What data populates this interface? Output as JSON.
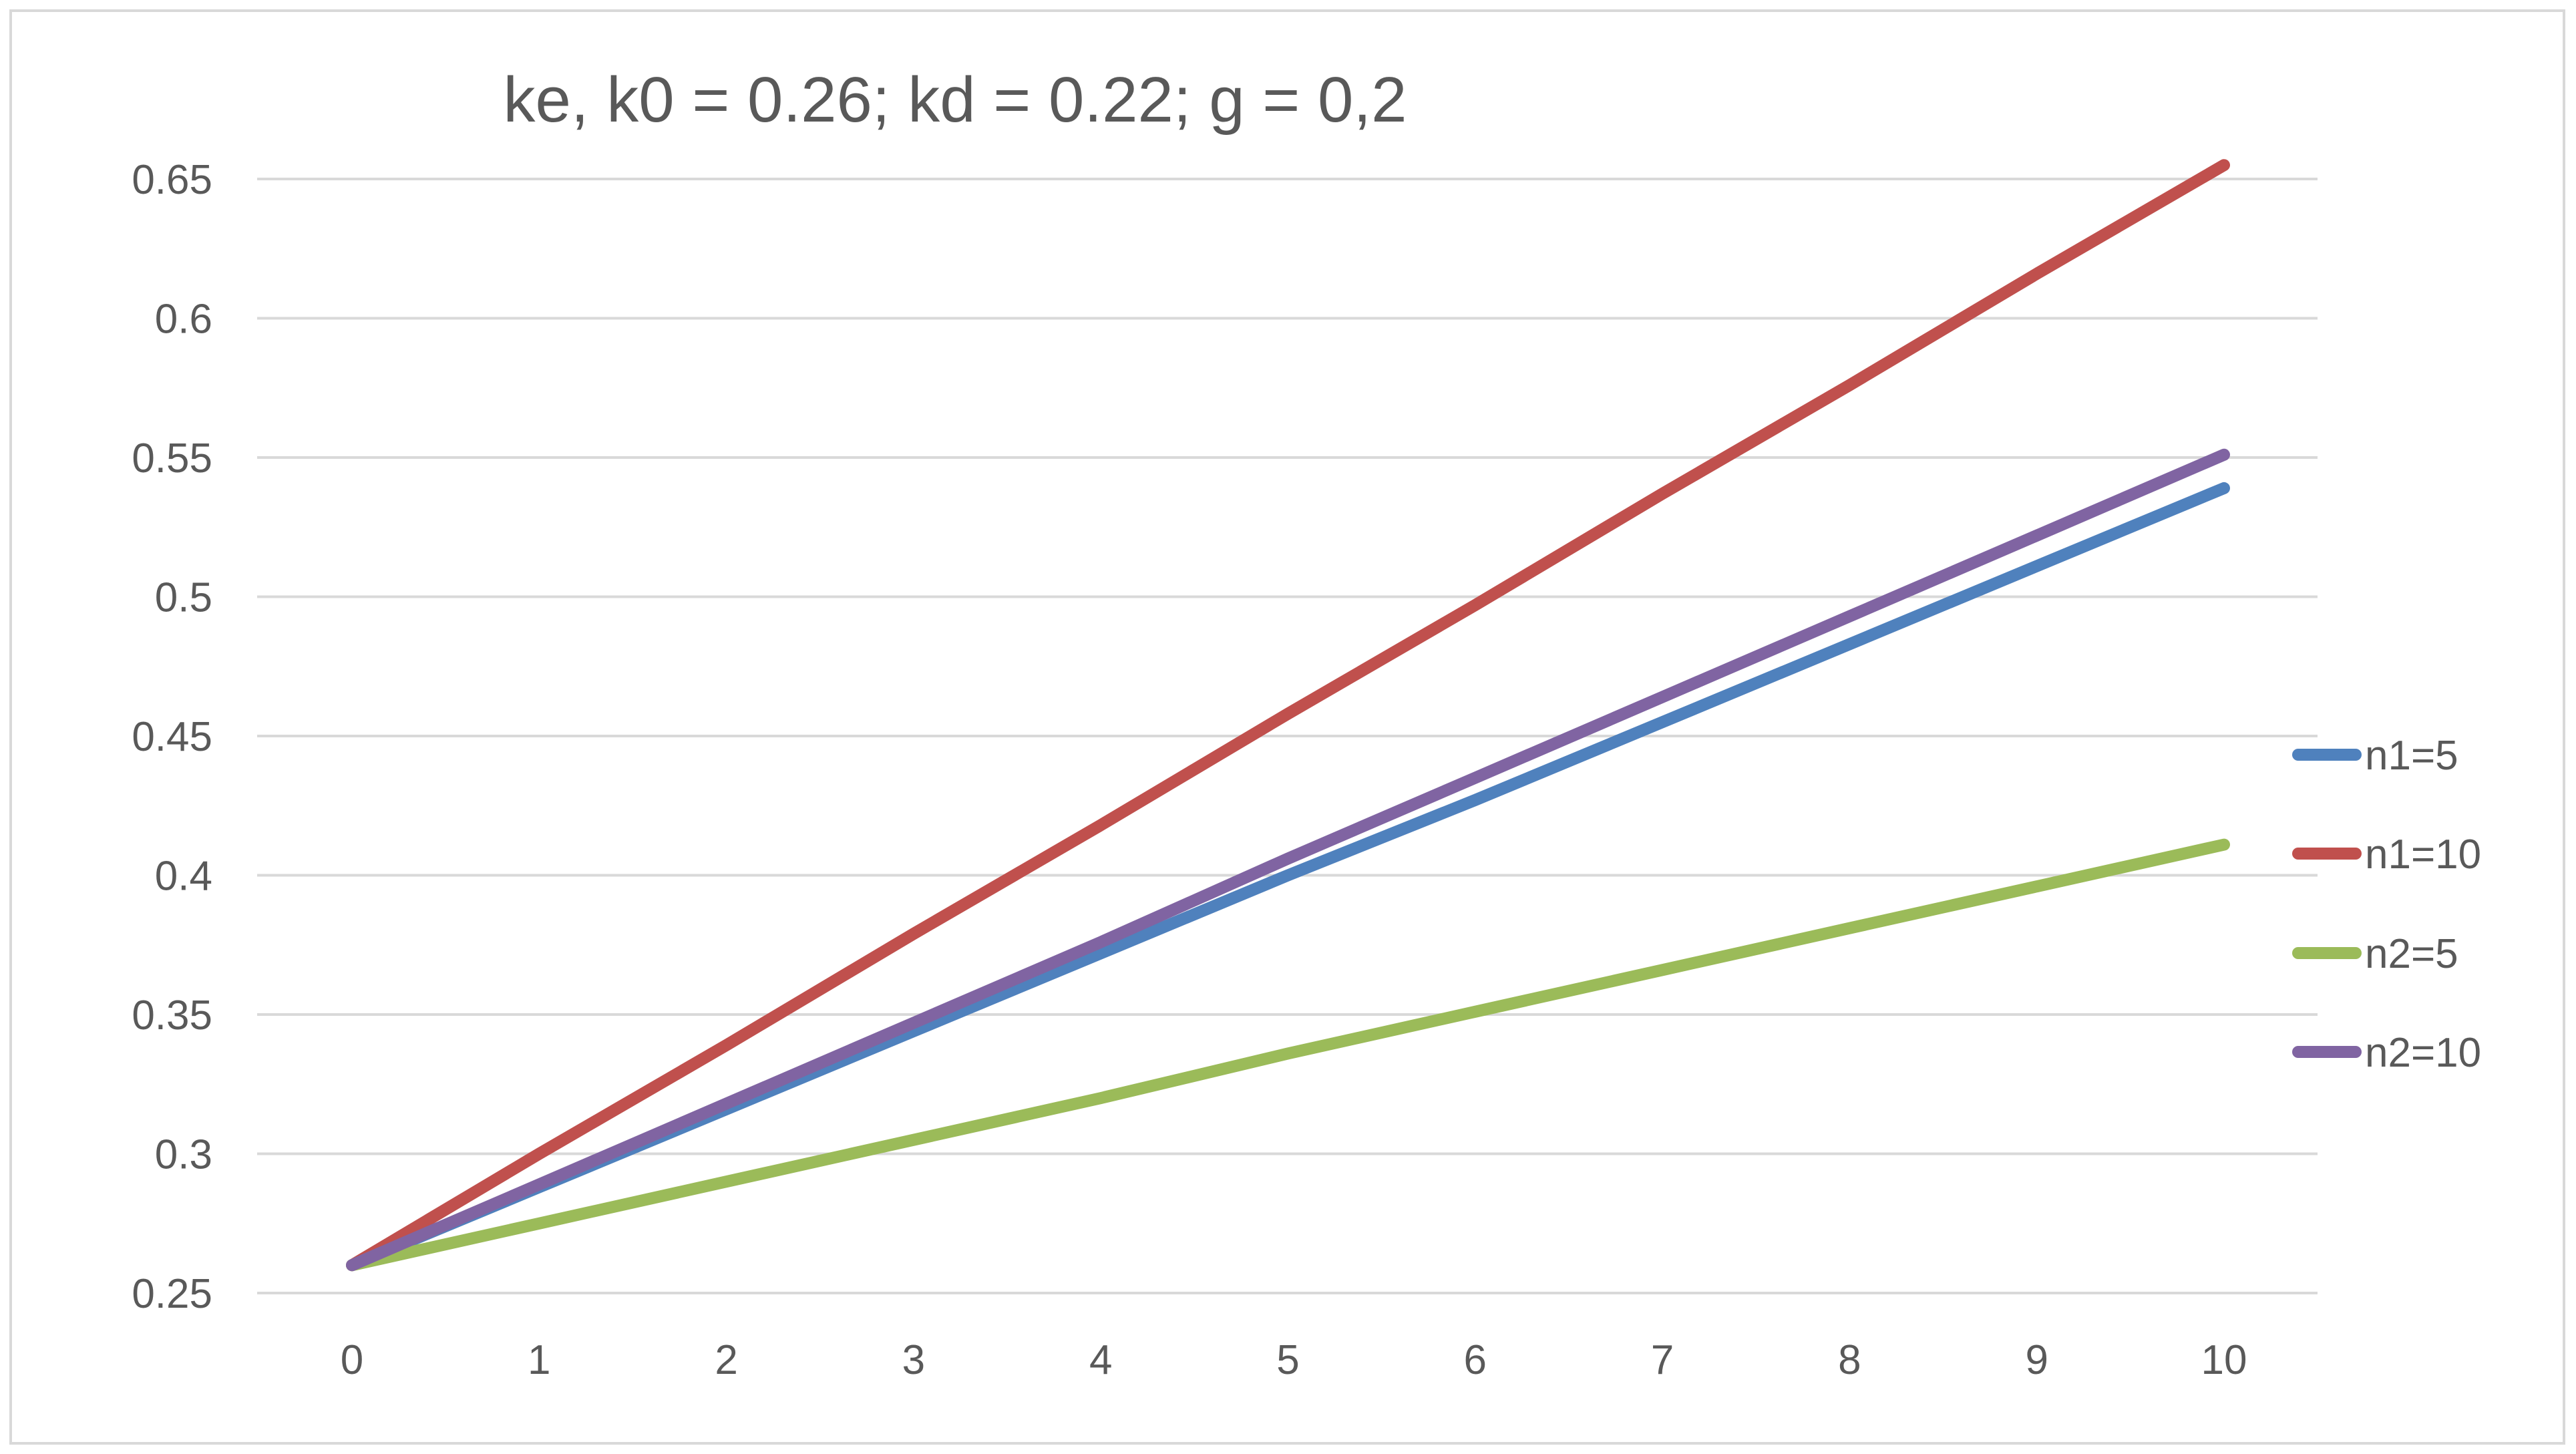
{
  "chart_data": {
    "type": "line",
    "title": "ke, k0 = 0.26; kd = 0.22; g = 0,2",
    "xlabel": "",
    "ylabel": "",
    "x": [
      0,
      1,
      2,
      3,
      4,
      5,
      6,
      7,
      8,
      9,
      10
    ],
    "x_ticks": [
      "0",
      "1",
      "2",
      "3",
      "4",
      "5",
      "6",
      "7",
      "8",
      "9",
      "10"
    ],
    "y_ticks": [
      "0.25",
      "0.3",
      "0.35",
      "0.4",
      "0.45",
      "0.5",
      "0.55",
      "0.6",
      "0.65"
    ],
    "ylim": [
      0.25,
      0.65
    ],
    "grid": "horizontal",
    "legend_position": "right",
    "series": [
      {
        "name": "n1=5",
        "color": "#4f81bd",
        "values": [
          0.26,
          0.288,
          0.316,
          0.344,
          0.372,
          0.4,
          0.427,
          0.455,
          0.483,
          0.511,
          0.539
        ]
      },
      {
        "name": "n1=10",
        "color": "#c0504d",
        "values": [
          0.26,
          0.3,
          0.339,
          0.379,
          0.418,
          0.458,
          0.497,
          0.537,
          0.576,
          0.616,
          0.655
        ]
      },
      {
        "name": "n2=5",
        "color": "#9bbb59",
        "values": [
          0.26,
          0.275,
          0.29,
          0.305,
          0.32,
          0.336,
          0.351,
          0.366,
          0.381,
          0.396,
          0.411
        ]
      },
      {
        "name": "n2=10",
        "color": "#8064a2",
        "values": [
          0.26,
          0.289,
          0.318,
          0.347,
          0.376,
          0.406,
          0.435,
          0.464,
          0.493,
          0.522,
          0.551
        ]
      }
    ]
  }
}
